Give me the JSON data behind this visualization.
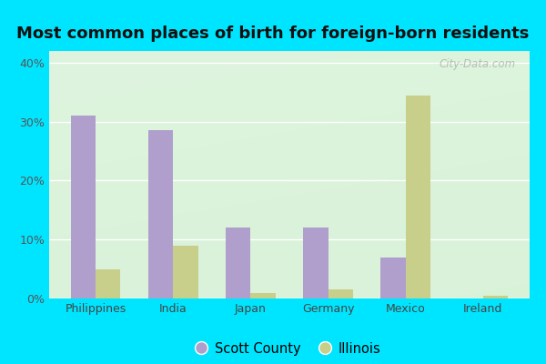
{
  "title": "Most common places of birth for foreign-born residents",
  "categories": [
    "Philippines",
    "India",
    "Japan",
    "Germany",
    "Mexico",
    "Ireland"
  ],
  "scott_county": [
    31.0,
    28.5,
    12.0,
    12.0,
    7.0,
    0.0
  ],
  "illinois": [
    5.0,
    9.0,
    1.0,
    1.5,
    34.5,
    0.5
  ],
  "scott_county_color": "#b09fcc",
  "illinois_color": "#c8cf8a",
  "outer_background": "#00e5ff",
  "title_fontsize": 13,
  "ylabel_ticks": [
    "0%",
    "10%",
    "20%",
    "30%",
    "40%"
  ],
  "ytick_vals": [
    0,
    10,
    20,
    30,
    40
  ],
  "ylim": [
    0,
    42
  ],
  "legend_labels": [
    "Scott County",
    "Illinois"
  ],
  "bar_width": 0.32,
  "watermark": "City-Data.com"
}
